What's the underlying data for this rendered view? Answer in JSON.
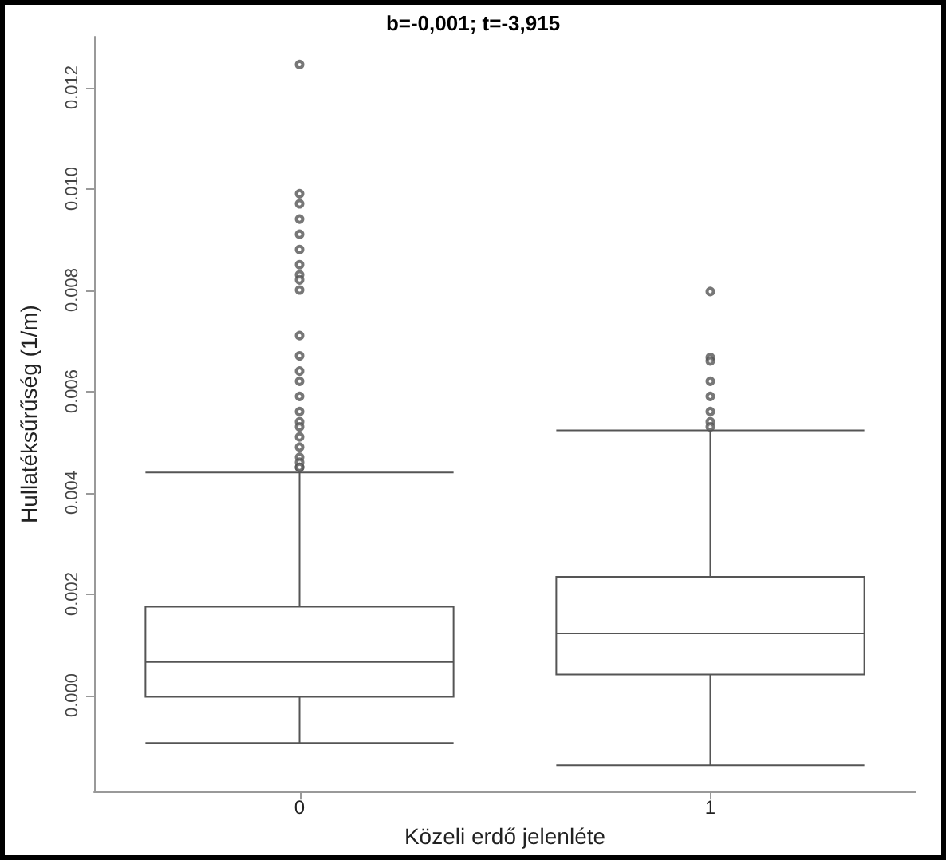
{
  "chart_data": {
    "type": "box",
    "title": "b=-0,001; t=-3,915",
    "xlabel": "Közeli erdő jelenléte",
    "ylabel": "Hullatéksűrűség (1/m)",
    "categories": [
      "0",
      "1"
    ],
    "boxes": [
      {
        "low": -0.00094,
        "q1": -3e-05,
        "median": 0.00066,
        "q3": 0.00175,
        "high": 0.0044,
        "outliers": [
          0.01245,
          0.0099,
          0.0097,
          0.0094,
          0.0091,
          0.0088,
          0.0085,
          0.0083,
          0.0082,
          0.008,
          0.0071,
          0.0067,
          0.0064,
          0.0062,
          0.0059,
          0.0056,
          0.0054,
          0.0053,
          0.0051,
          0.0049,
          0.0047,
          0.0046,
          0.0045,
          0.0045
        ]
      },
      {
        "low": -0.00138,
        "q1": 0.00041,
        "median": 0.00122,
        "q3": 0.00234,
        "high": 0.00523,
        "outliers": [
          0.00797,
          0.00667,
          0.0066,
          0.0062,
          0.0059,
          0.0056,
          0.0054,
          0.0053
        ]
      }
    ],
    "color": "#555555",
    "ylim": [
      -0.0019,
      0.013
    ],
    "yticks": [
      {
        "value": 0,
        "label": "0.000"
      },
      {
        "value": 0.002,
        "label": "0.002"
      },
      {
        "value": 0.004,
        "label": "0.004"
      },
      {
        "value": 0.006,
        "label": "0.006"
      },
      {
        "value": 0.008,
        "label": "0.008"
      },
      {
        "value": 0.01,
        "label": "0.010"
      },
      {
        "value": 0.012,
        "label": "0.012"
      }
    ],
    "marker": "circle"
  }
}
